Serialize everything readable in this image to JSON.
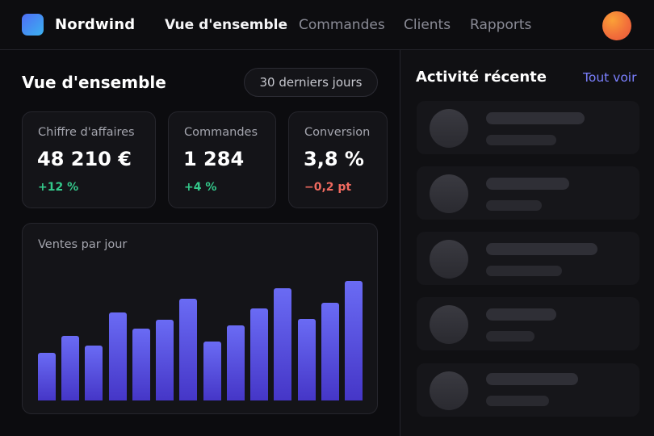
{
  "app": {
    "brand": "Nordwind",
    "accent": "#7b80ff",
    "logo_colors": [
      "#4f6df5",
      "#3bb2f0"
    ]
  },
  "nav": {
    "items": [
      {
        "label": "Vue d'ensemble",
        "active": true
      },
      {
        "label": "Commandes",
        "active": false
      },
      {
        "label": "Clients",
        "active": false
      },
      {
        "label": "Rapports",
        "active": false
      }
    ]
  },
  "main": {
    "title": "Vue d'ensemble",
    "range_label": "30 derniers jours",
    "kpis": [
      {
        "label": "Chiffre d'affaires",
        "value": "48 210 €",
        "delta": "+12 %",
        "trend": "up"
      },
      {
        "label": "Commandes",
        "value": "1 284",
        "delta": "+4 %",
        "trend": "up"
      },
      {
        "label": "Conversion",
        "value": "3,8 %",
        "delta": "−0,2 pt",
        "trend": "down"
      }
    ],
    "chart": {
      "title": "Ventes par jour"
    }
  },
  "chart_data": {
    "type": "bar",
    "title": "Ventes par jour",
    "values": [
      33,
      45,
      38,
      61,
      50,
      56,
      71,
      41,
      52,
      64,
      78,
      57,
      68,
      83
    ],
    "ylim": [
      0,
      100
    ],
    "grid": false,
    "color_top": "#6a6bf4",
    "color_bottom": "#4536c7"
  },
  "side": {
    "title": "Activité récente",
    "see_all": "Tout voir",
    "items_count_state": "loading-skeleton"
  }
}
